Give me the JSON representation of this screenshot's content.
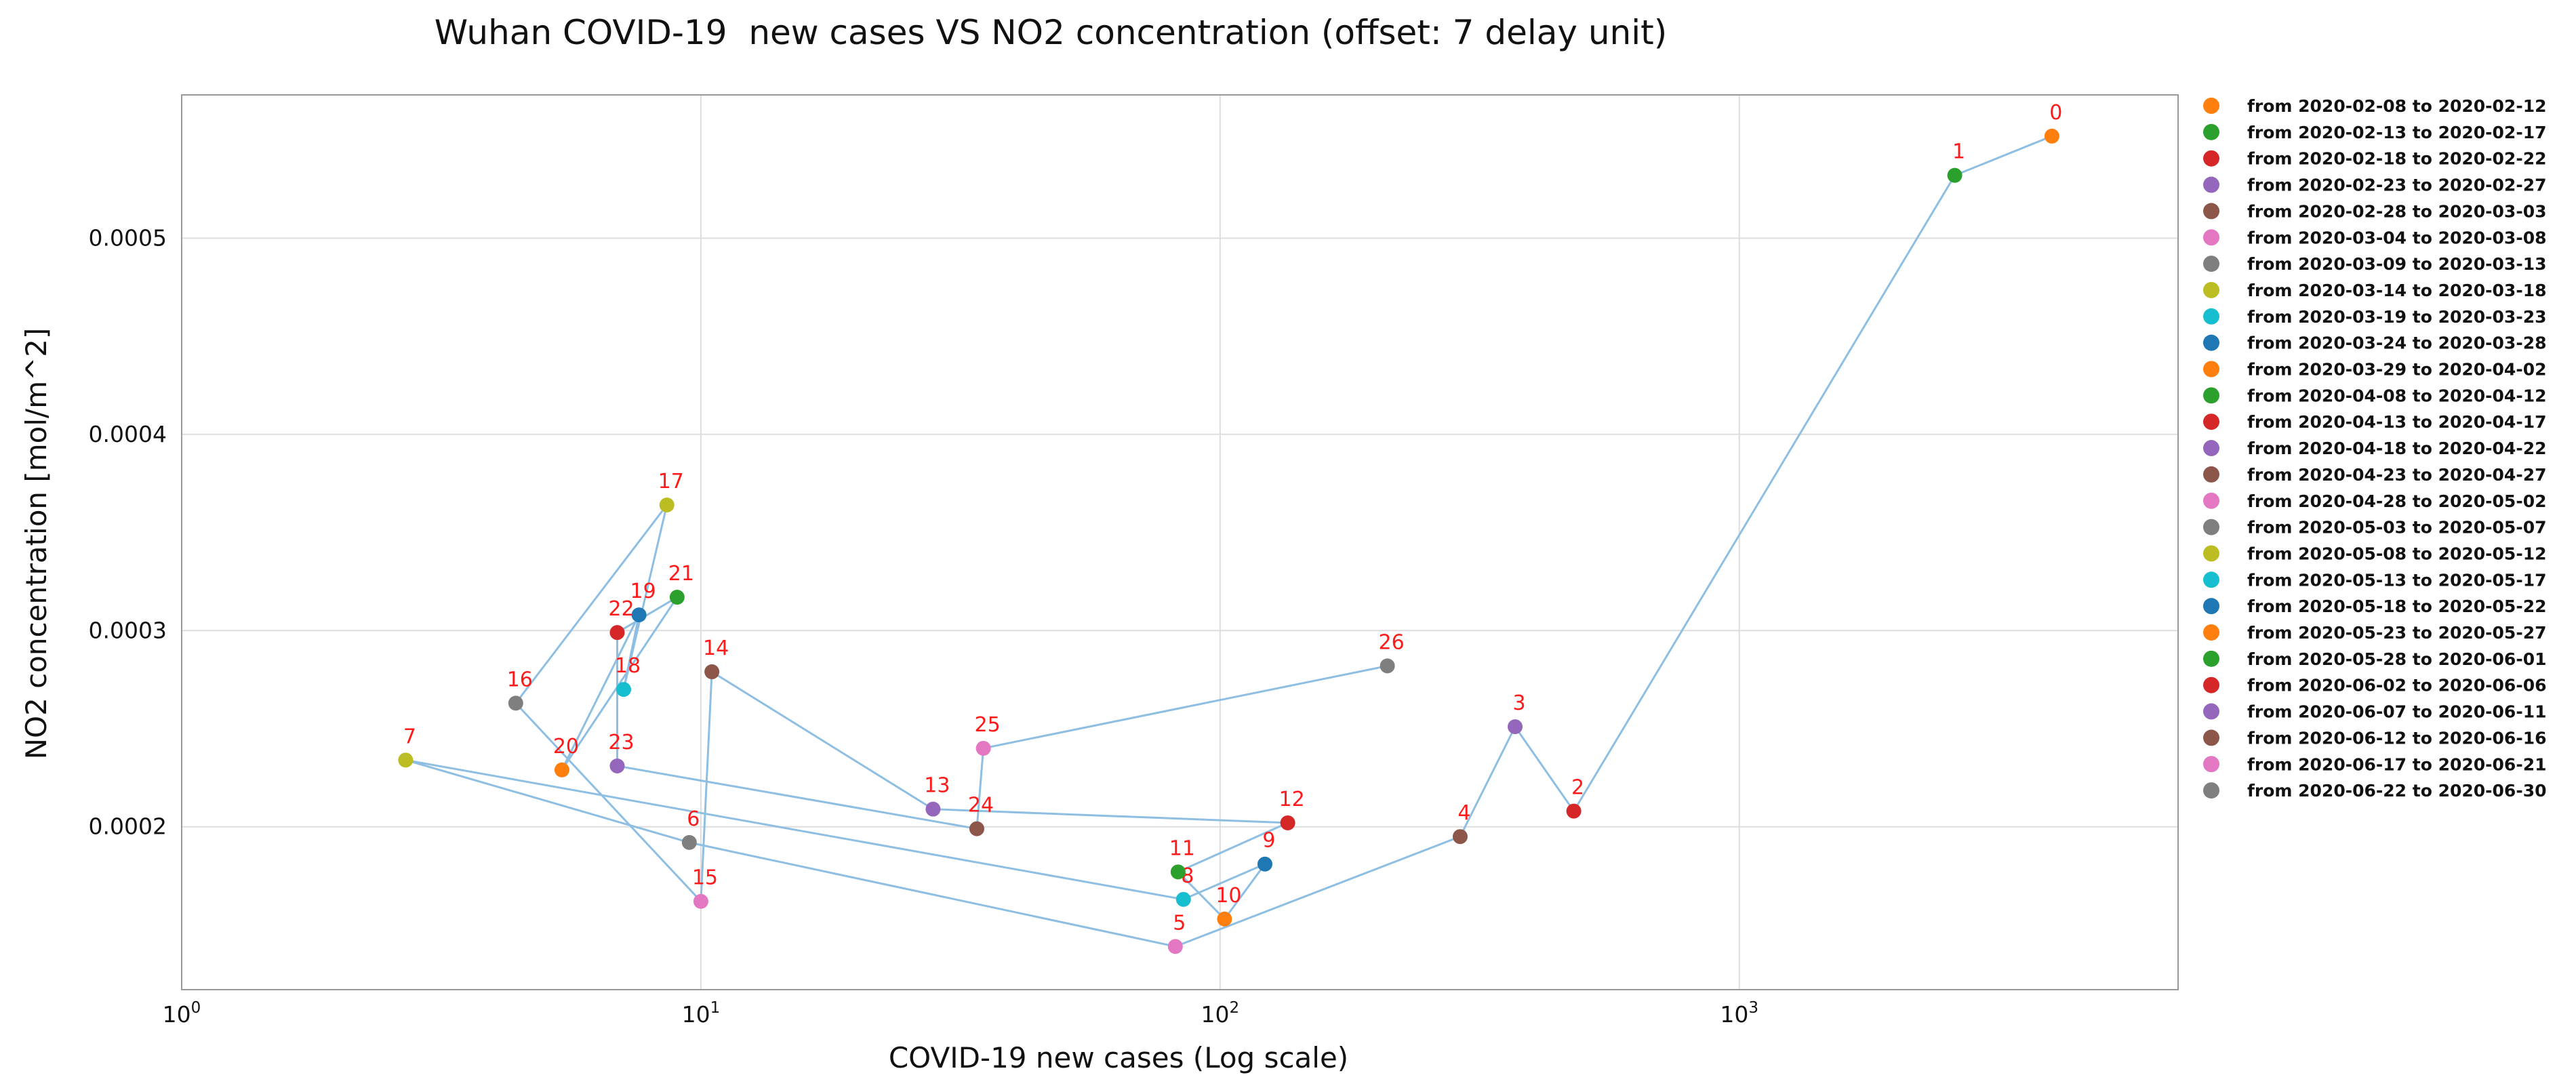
{
  "chart_data": {
    "type": "scatter",
    "title": "Wuhan COVID-19  new cases VS NO2 concentration (offset: 7 delay unit)",
    "xlabel": "COVID-19 new cases (Log scale)",
    "ylabel": "NO2 concentration [mol/m^2]",
    "x_scale": "log",
    "xlim": [
      1,
      7000
    ],
    "ylim": [
      0.000117,
      0.000573
    ],
    "x_ticks": [
      {
        "value": 1,
        "base": "10",
        "exp": "0"
      },
      {
        "value": 10,
        "base": "10",
        "exp": "1"
      },
      {
        "value": 100,
        "base": "10",
        "exp": "2"
      },
      {
        "value": 1000,
        "base": "10",
        "exp": "3"
      }
    ],
    "y_ticks": [
      {
        "value": 0.0002,
        "label": "0.0002"
      },
      {
        "value": 0.0003,
        "label": "0.0003"
      },
      {
        "value": 0.0004,
        "label": "0.0004"
      },
      {
        "value": 0.0005,
        "label": "0.0005"
      }
    ],
    "grid": true,
    "legend_position": "right",
    "points": [
      {
        "label": "0",
        "x": 4000,
        "y": 0.000552,
        "color": "#ff7f0e",
        "legend": "from 2020-02-08 to 2020-02-12"
      },
      {
        "label": "1",
        "x": 2600,
        "y": 0.000532,
        "color": "#2ca02c",
        "legend": "from 2020-02-13 to 2020-02-17"
      },
      {
        "label": "2",
        "x": 480,
        "y": 0.000208,
        "color": "#d62728",
        "legend": "from 2020-02-18 to 2020-02-22"
      },
      {
        "label": "3",
        "x": 370,
        "y": 0.000251,
        "color": "#9467bd",
        "legend": "from 2020-02-23 to 2020-02-27"
      },
      {
        "label": "4",
        "x": 290,
        "y": 0.000195,
        "color": "#8c564b",
        "legend": "from 2020-02-28 to 2020-03-03"
      },
      {
        "label": "5",
        "x": 82,
        "y": 0.000139,
        "color": "#e377c2",
        "legend": "from 2020-03-04 to 2020-03-08"
      },
      {
        "label": "6",
        "x": 9.5,
        "y": 0.000192,
        "color": "#7f7f7f",
        "legend": "from 2020-03-09 to 2020-03-13"
      },
      {
        "label": "7",
        "x": 2.7,
        "y": 0.000234,
        "color": "#bcbd22",
        "legend": "from 2020-03-14 to 2020-03-18"
      },
      {
        "label": "8",
        "x": 85,
        "y": 0.000163,
        "color": "#17becf",
        "legend": "from 2020-03-19 to 2020-03-23"
      },
      {
        "label": "9",
        "x": 122,
        "y": 0.000181,
        "color": "#1f77b4",
        "legend": "from 2020-03-24 to 2020-03-28"
      },
      {
        "label": "10",
        "x": 102,
        "y": 0.000153,
        "color": "#ff7f0e",
        "legend": "from 2020-03-29 to 2020-04-02"
      },
      {
        "label": "11",
        "x": 83,
        "y": 0.000177,
        "color": "#2ca02c",
        "legend": "from 2020-04-08 to 2020-04-12"
      },
      {
        "label": "12",
        "x": 135,
        "y": 0.000202,
        "color": "#d62728",
        "legend": "from 2020-04-13 to 2020-04-17"
      },
      {
        "label": "13",
        "x": 28,
        "y": 0.000209,
        "color": "#9467bd",
        "legend": "from 2020-04-18 to 2020-04-22"
      },
      {
        "label": "14",
        "x": 10.5,
        "y": 0.000279,
        "color": "#8c564b",
        "legend": "from 2020-04-23 to 2020-04-27"
      },
      {
        "label": "15",
        "x": 10.0,
        "y": 0.000162,
        "color": "#e377c2",
        "legend": "from 2020-04-28 to 2020-05-02"
      },
      {
        "label": "16",
        "x": 4.4,
        "y": 0.000263,
        "color": "#7f7f7f",
        "legend": "from 2020-05-03 to 2020-05-07"
      },
      {
        "label": "17",
        "x": 8.6,
        "y": 0.000364,
        "color": "#bcbd22",
        "legend": "from 2020-05-08 to 2020-05-12"
      },
      {
        "label": "18",
        "x": 7.1,
        "y": 0.00027,
        "color": "#17becf",
        "legend": "from 2020-05-13 to 2020-05-17"
      },
      {
        "label": "19",
        "x": 7.6,
        "y": 0.000308,
        "color": "#1f77b4",
        "legend": "from 2020-05-18 to 2020-05-22"
      },
      {
        "label": "20",
        "x": 5.4,
        "y": 0.000229,
        "color": "#ff7f0e",
        "legend": "from 2020-05-23 to 2020-05-27"
      },
      {
        "label": "21",
        "x": 9.0,
        "y": 0.000317,
        "color": "#2ca02c",
        "legend": "from 2020-05-28 to 2020-06-01"
      },
      {
        "label": "22",
        "x": 6.9,
        "y": 0.000299,
        "color": "#d62728",
        "legend": "from 2020-06-02 to 2020-06-06"
      },
      {
        "label": "23",
        "x": 6.9,
        "y": 0.000231,
        "color": "#9467bd",
        "legend": "from 2020-06-07 to 2020-06-11"
      },
      {
        "label": "24",
        "x": 34,
        "y": 0.000199,
        "color": "#8c564b",
        "legend": "from 2020-06-12 to 2020-06-16"
      },
      {
        "label": "25",
        "x": 35,
        "y": 0.00024,
        "color": "#e377c2",
        "legend": "from 2020-06-17 to 2020-06-21"
      },
      {
        "label": "26",
        "x": 210,
        "y": 0.000282,
        "color": "#7f7f7f",
        "legend": "from 2020-06-22 to 2020-06-30"
      }
    ]
  }
}
